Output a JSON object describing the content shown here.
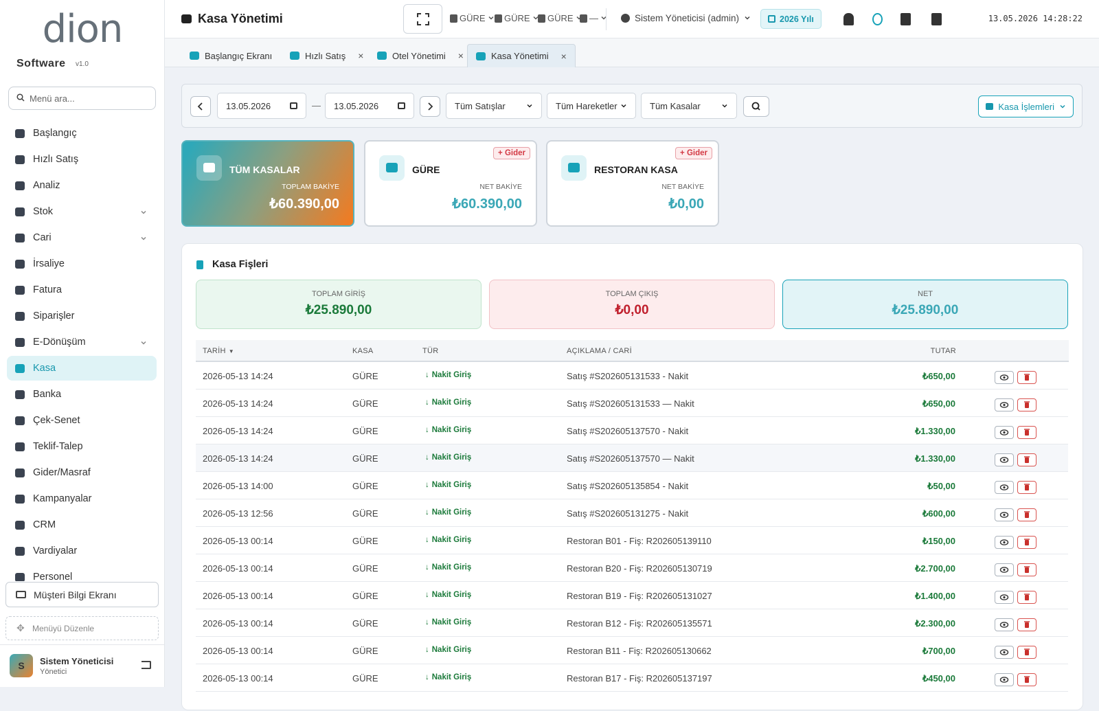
{
  "brand": {
    "logo": "dion",
    "name": "Software",
    "version": "v1.0"
  },
  "sidebar": {
    "search_placeholder": "Menü ara...",
    "menu": [
      {
        "label": "Başlangıç"
      },
      {
        "label": "Hızlı Satış"
      },
      {
        "label": "Analiz"
      },
      {
        "label": "Stok"
      },
      {
        "label": "Cari"
      },
      {
        "label": "İrsaliye"
      },
      {
        "label": "Fatura"
      },
      {
        "label": "Siparişler"
      },
      {
        "label": "E-Dönüşüm"
      },
      {
        "label": "Kasa"
      },
      {
        "label": "Banka"
      },
      {
        "label": "Çek-Senet"
      },
      {
        "label": "Teklif-Talep"
      },
      {
        "label": "Gider/Masraf"
      },
      {
        "label": "Kampanyalar"
      },
      {
        "label": "CRM"
      },
      {
        "label": "Vardiyalar"
      },
      {
        "label": "Personel"
      }
    ],
    "customer_screen": "Müşteri Bilgi Ekranı",
    "edit_menu": "Menüyü Düzenle",
    "user": {
      "initial": "S",
      "name": "Sistem Yöneticisi",
      "role": "Yönetici"
    }
  },
  "topbar": {
    "title": "Kasa Yönetimi",
    "branches": [
      "GÜRE",
      "GÜRE",
      "GÜRE",
      "—"
    ],
    "user": "Sistem Yöneticisi (admin)",
    "year": "2026 Yılı",
    "datetime": "13.05.2026 14:28:22"
  },
  "tabs": [
    "Başlangıç Ekranı",
    "Hızlı Satış",
    "Otel Yönetimi",
    "Kasa Yönetimi"
  ],
  "filters": {
    "start_date": "13.05.2026",
    "separator": "—",
    "end_date": "13.05.2026",
    "sales": "Tüm Satışlar",
    "movements": "Tüm Hareketler",
    "registers": "Tüm Kasalar",
    "actions": "Kasa İşlemleri"
  },
  "cards": [
    {
      "title": "TÜM KASALAR",
      "label": "TOPLAM BAKİYE",
      "amount": "₺60.390,00"
    },
    {
      "title": "GÜRE",
      "badge": "+ Gider",
      "label": "NET BAKİYE",
      "amount": "₺60.390,00"
    },
    {
      "title": "RESTORAN KASA",
      "badge": "+ Gider",
      "label": "NET BAKİYE",
      "amount": "₺0,00"
    }
  ],
  "receipts": {
    "title": "Kasa Fişleri",
    "summary": [
      {
        "label": "TOPLAM GİRİŞ",
        "amount": "₺25.890,00"
      },
      {
        "label": "TOPLAM ÇIKIŞ",
        "amount": "₺0,00"
      },
      {
        "label": "NET",
        "amount": "₺25.890,00"
      }
    ],
    "columns": [
      "TARİH",
      "KASA",
      "TÜR",
      "AÇIKLAMA / CARİ",
      "TUTAR"
    ],
    "rows": [
      {
        "date": "2026-05-13 14:24",
        "register": "GÜRE",
        "type": "Nakit Giriş",
        "description": "Satış #S202605131533 - Nakit",
        "amount": "₺650,00"
      },
      {
        "date": "2026-05-13 14:24",
        "register": "GÜRE",
        "type": "Nakit Giriş",
        "description": "Satış #S202605131533 — Nakit",
        "amount": "₺650,00"
      },
      {
        "date": "2026-05-13 14:24",
        "register": "GÜRE",
        "type": "Nakit Giriş",
        "description": "Satış #S202605137570 - Nakit",
        "amount": "₺1.330,00"
      },
      {
        "date": "2026-05-13 14:24",
        "register": "GÜRE",
        "type": "Nakit Giriş",
        "description": "Satış #S202605137570 — Nakit",
        "amount": "₺1.330,00"
      },
      {
        "date": "2026-05-13 14:00",
        "register": "GÜRE",
        "type": "Nakit Giriş",
        "description": "Satış #S202605135854 - Nakit",
        "amount": "₺50,00"
      },
      {
        "date": "2026-05-13 12:56",
        "register": "GÜRE",
        "type": "Nakit Giriş",
        "description": "Satış #S202605131275 - Nakit",
        "amount": "₺600,00"
      },
      {
        "date": "2026-05-13 00:14",
        "register": "GÜRE",
        "type": "Nakit Giriş",
        "description": "Restoran B01 - Fiş: R202605139110",
        "amount": "₺150,00"
      },
      {
        "date": "2026-05-13 00:14",
        "register": "GÜRE",
        "type": "Nakit Giriş",
        "description": "Restoran B20 - Fiş: R202605130719",
        "amount": "₺2.700,00"
      },
      {
        "date": "2026-05-13 00:14",
        "register": "GÜRE",
        "type": "Nakit Giriş",
        "description": "Restoran B19 - Fiş: R202605131027",
        "amount": "₺1.400,00"
      },
      {
        "date": "2026-05-13 00:14",
        "register": "GÜRE",
        "type": "Nakit Giriş",
        "description": "Restoran B12 - Fiş: R202605135571",
        "amount": "₺2.300,00"
      },
      {
        "date": "2026-05-13 00:14",
        "register": "GÜRE",
        "type": "Nakit Giriş",
        "description": "Restoran B11 - Fiş: R202605130662",
        "amount": "₺700,00"
      },
      {
        "date": "2026-05-13 00:14",
        "register": "GÜRE",
        "type": "Nakit Giriş",
        "description": "Restoran B17 - Fiş: R202605137197",
        "amount": "₺450,00"
      }
    ]
  }
}
